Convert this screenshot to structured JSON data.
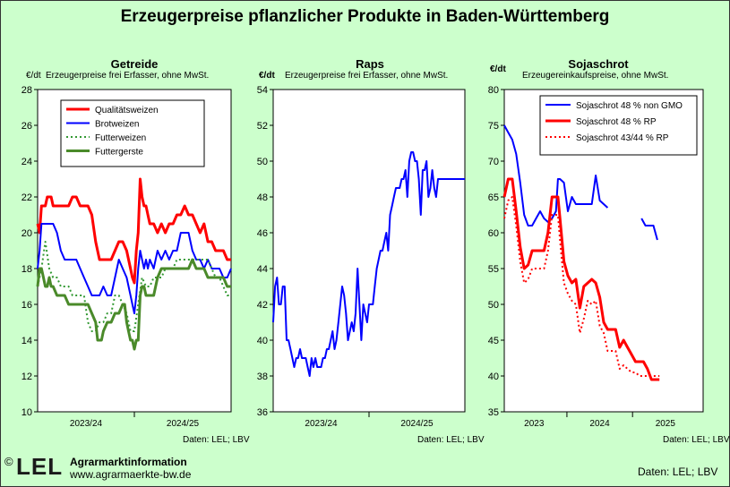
{
  "title": "Erzeugerpreise pflanzlicher Produkte in Baden-Württemberg",
  "footer": {
    "copyright": "©",
    "logo_text": "LEL",
    "org_name": "Agrarmarktinformation",
    "url": "www.agrarmaerkte-bw.de",
    "source": "Daten: LEL; LBV"
  },
  "chart_data": [
    {
      "type": "line",
      "title": "Getreide",
      "unit": "€/dt",
      "subtitle": "Erzeugerpreise frei Erfasser, ohne MwSt.",
      "source": "Daten: LEL; LBV",
      "ylim": [
        10,
        28
      ],
      "yticks": [
        10,
        12,
        14,
        16,
        18,
        20,
        22,
        24,
        26,
        28
      ],
      "xlim": [
        0,
        100
      ],
      "period_labels": [
        {
          "label": "2023/24",
          "at": 25
        },
        {
          "label": "2024/25",
          "at": 75
        }
      ],
      "period_dividers": [
        50
      ],
      "grid": false,
      "legend": "top-left",
      "series": [
        {
          "name": "Qualitätsweizen",
          "color": "#ff0000",
          "dash": "",
          "width": 3,
          "x": [
            0,
            1,
            2,
            3,
            4,
            5,
            6,
            7,
            8,
            9,
            10,
            12,
            14,
            16,
            18,
            20,
            22,
            24,
            26,
            28,
            30,
            32,
            34,
            35,
            36,
            38,
            40,
            42,
            44,
            46,
            48,
            49,
            50,
            51,
            52,
            53,
            54,
            55,
            56,
            57,
            58,
            59,
            60,
            62,
            64,
            66,
            68,
            70,
            72,
            74,
            76,
            78,
            80,
            82,
            84,
            86,
            88,
            90,
            92,
            94,
            96,
            98,
            100
          ],
          "y": [
            20.5,
            20,
            21.5,
            21.5,
            21.5,
            22,
            22,
            22,
            21.5,
            21.5,
            21.5,
            21.5,
            21.5,
            21.5,
            22,
            22,
            21.5,
            21.5,
            21.5,
            21,
            19.5,
            18.5,
            18.5,
            18.5,
            18.5,
            18.5,
            19,
            19.5,
            19.5,
            19,
            18,
            17.5,
            17.2,
            19,
            20,
            23,
            22,
            21.5,
            21.5,
            21,
            20.5,
            20.5,
            20.5,
            20,
            20.5,
            20,
            20.5,
            20.5,
            21,
            21,
            21.5,
            21,
            21,
            20.5,
            20,
            20.5,
            19.5,
            19.5,
            19,
            19,
            19,
            18.5,
            18.5
          ]
        },
        {
          "name": "Brotweizen",
          "color": "#0000ff",
          "dash": "",
          "width": 2,
          "x": [
            0,
            1,
            2,
            3,
            4,
            5,
            6,
            7,
            8,
            10,
            12,
            14,
            16,
            18,
            20,
            22,
            24,
            26,
            28,
            30,
            32,
            34,
            36,
            38,
            40,
            42,
            44,
            46,
            48,
            49,
            50,
            51,
            52,
            53,
            54,
            55,
            56,
            57,
            58,
            60,
            62,
            64,
            66,
            68,
            70,
            72,
            74,
            76,
            78,
            80,
            82,
            84,
            86,
            88,
            90,
            92,
            94,
            96,
            98,
            100
          ],
          "y": [
            18,
            19,
            20.5,
            20.5,
            20.5,
            20.5,
            20.5,
            20.5,
            20.5,
            20,
            19,
            18.5,
            18.5,
            18.5,
            18.5,
            18,
            17.5,
            17,
            16.5,
            16.5,
            16.5,
            17,
            16.5,
            16.5,
            17.5,
            18.5,
            18,
            17.5,
            16.5,
            16,
            15.5,
            16.5,
            18,
            19,
            18.5,
            18,
            18.5,
            18,
            18.5,
            18,
            19,
            18.5,
            19,
            18.5,
            19,
            19,
            20,
            20,
            20,
            19,
            18.5,
            18.5,
            18,
            18.5,
            18,
            18,
            18,
            17.5,
            17.5,
            18
          ]
        },
        {
          "name": "Futterweizen",
          "color": "#339933",
          "dash": "2,3",
          "width": 2,
          "x": [
            0,
            2,
            4,
            6,
            8,
            10,
            12,
            14,
            16,
            18,
            20,
            22,
            24,
            26,
            28,
            30,
            32,
            34,
            36,
            38,
            40,
            42,
            44,
            46,
            48,
            50,
            52,
            54,
            56,
            58,
            60,
            62,
            64,
            66,
            68,
            70,
            72,
            74,
            76,
            78,
            80,
            82,
            84,
            86,
            88,
            90,
            92,
            94,
            96,
            98,
            100
          ],
          "y": [
            17,
            18,
            19.5,
            18,
            17.5,
            17.5,
            17,
            17,
            17,
            16.5,
            16.5,
            16.5,
            16.5,
            15,
            14.5,
            14.5,
            15,
            15,
            15.5,
            15.5,
            16.5,
            16.5,
            16,
            15.5,
            14.5,
            14.5,
            16,
            17.5,
            17,
            17,
            17.5,
            17.5,
            17.5,
            18,
            18,
            18,
            18.5,
            18.5,
            18.5,
            18.5,
            18.5,
            18.5,
            18.5,
            18.5,
            18.5,
            18,
            17.5,
            17.5,
            17,
            16.5,
            16.5
          ]
        },
        {
          "name": "Futtergerste",
          "color": "#4a8a2a",
          "dash": "",
          "width": 3,
          "x": [
            0,
            1,
            2,
            3,
            4,
            5,
            6,
            7,
            8,
            10,
            12,
            14,
            16,
            18,
            20,
            22,
            24,
            26,
            28,
            30,
            31,
            32,
            33,
            34,
            36,
            38,
            40,
            42,
            44,
            45,
            46,
            47,
            48,
            49,
            50,
            51,
            52,
            53,
            54,
            55,
            56,
            57,
            58,
            60,
            62,
            64,
            66,
            68,
            70,
            72,
            74,
            76,
            78,
            80,
            82,
            84,
            86,
            88,
            90,
            92,
            94,
            96,
            98,
            100
          ],
          "y": [
            17,
            18,
            18,
            17.5,
            17,
            17,
            17.5,
            17,
            17,
            16.5,
            16.5,
            16.5,
            16,
            16,
            16,
            16,
            16,
            16,
            15.5,
            15,
            14,
            14,
            14,
            14.5,
            15,
            15,
            15.5,
            15.5,
            16,
            16,
            15,
            14.5,
            14,
            14,
            13.5,
            14,
            14,
            16.5,
            17,
            17,
            16.5,
            16.5,
            16.5,
            16.5,
            17.5,
            18,
            18,
            18,
            18,
            18,
            18,
            18,
            18,
            18.5,
            18,
            18,
            18,
            17.5,
            17.5,
            17.5,
            17.5,
            17.5,
            17,
            17
          ]
        }
      ]
    },
    {
      "type": "line",
      "title": "Raps",
      "unit": "€/dt",
      "subtitle": "Erzeugerpreise frei Erfasser, ohne MwSt.",
      "source": "Daten: LEL; LBV",
      "ylim": [
        36,
        54
      ],
      "yticks": [
        36,
        38,
        40,
        42,
        44,
        46,
        48,
        50,
        52,
        54
      ],
      "xlim": [
        0,
        100
      ],
      "period_labels": [
        {
          "label": "2023/24",
          "at": 25
        },
        {
          "label": "2024/25",
          "at": 75
        }
      ],
      "period_dividers": [
        50
      ],
      "grid": false,
      "series": [
        {
          "name": "Raps",
          "color": "#0000ff",
          "dash": "",
          "width": 2,
          "x": [
            0,
            1,
            2,
            3,
            4,
            5,
            6,
            7,
            8,
            9,
            10,
            11,
            12,
            13,
            14,
            15,
            16,
            17,
            18,
            19,
            20,
            21,
            22,
            23,
            24,
            25,
            26,
            27,
            28,
            29,
            30,
            31,
            32,
            33,
            34,
            35,
            36,
            37,
            38,
            39,
            40,
            41,
            42,
            43,
            44,
            45,
            46,
            47,
            48,
            49,
            50,
            51,
            52,
            53,
            54,
            55,
            56,
            57,
            58,
            59,
            60,
            61,
            62,
            63,
            64,
            65,
            66,
            67,
            68,
            69,
            70,
            71,
            72,
            73,
            74,
            75,
            76,
            77,
            78,
            79,
            80,
            81,
            82,
            83,
            84,
            85,
            86,
            87,
            88,
            89,
            90,
            91,
            92,
            93,
            94,
            95,
            96,
            97,
            98,
            99,
            100
          ],
          "y": [
            41,
            43,
            43.5,
            42,
            42,
            43,
            43,
            40,
            40,
            39.5,
            39,
            38.5,
            39,
            39,
            39.5,
            39,
            39,
            39,
            38.5,
            38,
            39,
            38.5,
            39,
            38.5,
            38.5,
            38.5,
            39,
            39,
            39.5,
            39.5,
            40,
            40.5,
            39.5,
            40,
            41,
            42,
            43,
            42.5,
            41.5,
            40,
            40.5,
            41,
            40.5,
            41.5,
            44,
            42,
            40,
            42,
            41.5,
            41,
            42,
            42,
            42,
            43,
            44,
            44.5,
            45,
            45,
            45.5,
            46,
            45,
            47,
            47.5,
            48,
            48.5,
            48.5,
            48.5,
            49,
            49,
            49.5,
            48,
            50,
            50.5,
            50.5,
            50,
            50,
            49,
            47,
            49.5,
            49.5,
            50,
            48,
            48.5,
            49.5,
            48.5,
            48,
            49,
            49,
            49,
            49,
            49,
            49,
            49,
            49,
            49,
            49,
            49,
            49,
            49,
            49,
            49
          ],
          "note": "end segment clipped at x=63 of 100 where original stops around"
        }
      ]
    },
    {
      "type": "line",
      "title": "Sojaschrot",
      "unit": "€/dt",
      "subtitle": "Erzeugereinkaufspreise, ohne MwSt.",
      "source": "Daten: LEL; LBV",
      "ylim": [
        35,
        80
      ],
      "yticks": [
        35,
        40,
        45,
        50,
        55,
        60,
        65,
        70,
        75,
        80
      ],
      "xlim": [
        0,
        100
      ],
      "period_labels": [
        {
          "label": "2023",
          "at": 15
        },
        {
          "label": "2024",
          "at": 48
        },
        {
          "label": "2025",
          "at": 81
        }
      ],
      "period_dividers": [
        31.5,
        64.5
      ],
      "grid": false,
      "legend": "top-right",
      "series": [
        {
          "name": "Sojaschrot 48 % non GMO",
          "color": "#0000ff",
          "dash": "",
          "width": 2,
          "x": [
            0,
            2,
            4,
            6,
            8,
            10,
            12,
            14,
            16,
            18,
            20,
            22,
            24,
            26,
            27,
            28,
            30,
            32,
            34,
            36,
            38,
            40,
            42,
            44,
            46,
            48,
            50,
            52,
            null,
            69,
            71,
            73,
            75,
            77
          ],
          "y": [
            75,
            74,
            73,
            71,
            67,
            62.5,
            61,
            61,
            62,
            63,
            62,
            61.5,
            62,
            63,
            67.5,
            67.5,
            67,
            63,
            65,
            64,
            64,
            64,
            64,
            64,
            68,
            64.5,
            64,
            63.5,
            null,
            62,
            61,
            61,
            61,
            59
          ]
        },
        {
          "name": "Sojaschrot 48 % RP",
          "color": "#ff0000",
          "dash": "",
          "width": 3,
          "x": [
            0,
            2,
            4,
            6,
            8,
            10,
            12,
            14,
            16,
            18,
            20,
            22,
            24,
            26,
            27,
            28,
            30,
            31,
            32,
            34,
            36,
            38,
            40,
            42,
            44,
            46,
            48,
            50,
            52,
            54,
            56,
            58,
            60,
            62,
            64,
            66,
            68,
            70,
            72,
            74,
            76,
            78
          ],
          "y": [
            65,
            67.5,
            67.5,
            63,
            58,
            55,
            55.5,
            57.5,
            57.5,
            57.5,
            57.5,
            60,
            65,
            65,
            65,
            62,
            56,
            55,
            54,
            53,
            53.5,
            49.5,
            52.5,
            53,
            53.5,
            53,
            51,
            47.5,
            46.5,
            46.5,
            46.5,
            44,
            45,
            44,
            43,
            42,
            42,
            42,
            41,
            39.5,
            39.5,
            39.5
          ]
        },
        {
          "name": "Sojaschrot 43/44 % RP",
          "color": "#ff0000",
          "dash": "2,3",
          "width": 2,
          "x": [
            0,
            2,
            4,
            6,
            8,
            10,
            12,
            14,
            16,
            18,
            20,
            22,
            24,
            26,
            27,
            28,
            30,
            32,
            34,
            36,
            38,
            40,
            42,
            44,
            46,
            48,
            50,
            52,
            54,
            56,
            58,
            60,
            62,
            64,
            66,
            68,
            70,
            72,
            74,
            76,
            78
          ],
          "y": [
            62,
            64.5,
            65,
            61,
            56,
            53,
            53.5,
            55,
            55,
            55,
            55,
            57.5,
            62.5,
            62.5,
            62.5,
            59,
            53,
            51.5,
            50.5,
            50,
            46,
            48,
            50.5,
            50,
            50.5,
            47,
            46,
            43.5,
            43.5,
            43.5,
            41,
            41.5,
            41,
            40.5,
            40.5,
            40,
            40,
            40,
            40,
            40,
            40
          ]
        }
      ]
    }
  ]
}
